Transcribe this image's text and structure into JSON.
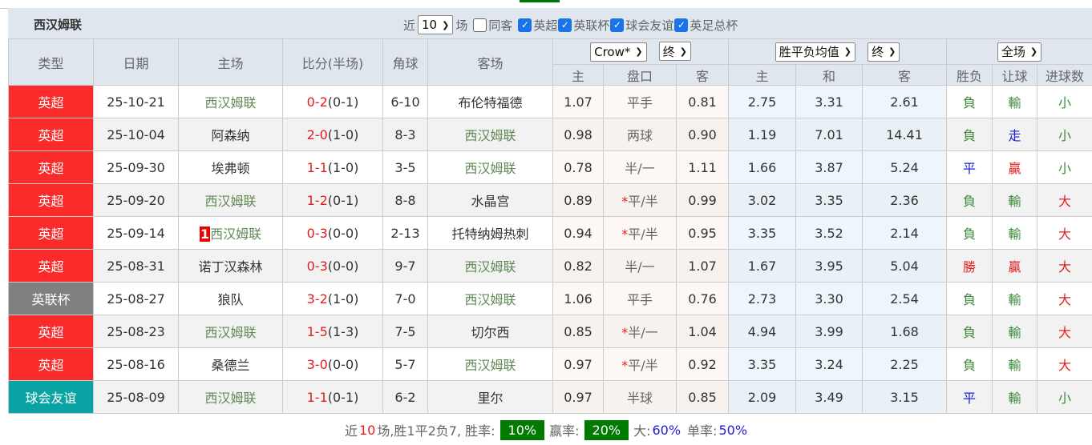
{
  "header": {
    "team": "西汉姆联",
    "near_label": "近",
    "count_value": "10",
    "games_label": "场",
    "checkboxes": [
      {
        "label": "同客",
        "checked": false
      },
      {
        "label": "英超",
        "checked": true
      },
      {
        "label": "英联杯",
        "checked": true
      },
      {
        "label": "球会友谊",
        "checked": true
      },
      {
        "label": "英足总杯",
        "checked": true
      }
    ]
  },
  "columns": {
    "type": "类型",
    "date": "日期",
    "home": "主场",
    "score": "比分(半场)",
    "corner": "角球",
    "away": "客场",
    "company_select": "Crow*",
    "odds_time_select": "终",
    "europe_select": "胜平负均值",
    "europe_time_select": "终",
    "period_select": "全场",
    "sub": [
      "主",
      "盘口",
      "客",
      "主",
      "和",
      "客",
      "胜负",
      "让球",
      "进球数"
    ]
  },
  "colors": {
    "英超": "#fb2b2b",
    "英联杯": "#808080",
    "球会友谊": "#0aa3a3"
  },
  "rows": [
    {
      "type": "英超",
      "date": "25-10-21",
      "home": "西汉姆联",
      "ft": "0-2",
      "ht": "(0-1)",
      "corner": "6-10",
      "away": "布伦特福德",
      "h": "1.07",
      "line": "平手",
      "a": "0.81",
      "w": "2.75",
      "d": "3.31",
      "l": "2.61",
      "res": "負",
      "ah": "輸",
      "ou": "小"
    },
    {
      "type": "英超",
      "date": "25-10-04",
      "home": "阿森纳",
      "ft": "2-0",
      "ht": "(1-0)",
      "corner": "8-3",
      "away": "西汉姆联",
      "h": "0.98",
      "line": "两球",
      "a": "0.90",
      "w": "1.19",
      "d": "7.01",
      "l": "14.41",
      "res": "負",
      "ah": "走",
      "ou": "小"
    },
    {
      "type": "英超",
      "date": "25-09-30",
      "home": "埃弗顿",
      "ft": "1-1",
      "ht": "(1-0)",
      "corner": "3-5",
      "away": "西汉姆联",
      "h": "0.78",
      "line": "半/一",
      "a": "1.11",
      "w": "1.66",
      "d": "3.87",
      "l": "5.24",
      "res": "平",
      "ah": "贏",
      "ou": "小"
    },
    {
      "type": "英超",
      "date": "25-09-20",
      "home": "西汉姆联",
      "ft": "1-2",
      "ht": "(0-1)",
      "corner": "8-8",
      "away": "水晶宫",
      "h": "0.89",
      "star": "*",
      "line": "平/半",
      "a": "0.99",
      "w": "3.02",
      "d": "3.35",
      "l": "2.36",
      "res": "負",
      "ah": "輸",
      "ou": "大"
    },
    {
      "type": "英超",
      "date": "25-09-14",
      "badge": "1",
      "home": "西汉姆联",
      "ft": "0-3",
      "ht": "(0-0)",
      "corner": "2-13",
      "away": "托特纳姆热刺",
      "h": "0.94",
      "star": "*",
      "line": "平/半",
      "a": "0.95",
      "w": "3.35",
      "d": "3.52",
      "l": "2.14",
      "res": "負",
      "ah": "輸",
      "ou": "大"
    },
    {
      "type": "英超",
      "date": "25-08-31",
      "home": "诺丁汉森林",
      "ft": "0-3",
      "ht": "(0-0)",
      "corner": "9-7",
      "away": "西汉姆联",
      "h": "0.82",
      "line": "半/一",
      "a": "1.07",
      "w": "1.67",
      "d": "3.95",
      "l": "5.04",
      "res": "勝",
      "ah": "贏",
      "ou": "大"
    },
    {
      "type": "英联杯",
      "date": "25-08-27",
      "home": "狼队",
      "ft": "3-2",
      "ht": "(1-0)",
      "corner": "7-0",
      "away": "西汉姆联",
      "h": "1.06",
      "line": "平手",
      "a": "0.76",
      "w": "2.73",
      "d": "3.30",
      "l": "2.54",
      "res": "負",
      "ah": "輸",
      "ou": "大"
    },
    {
      "type": "英超",
      "date": "25-08-23",
      "home": "西汉姆联",
      "ft": "1-5",
      "ht": "(1-3)",
      "corner": "7-5",
      "away": "切尔西",
      "h": "0.85",
      "star": "*",
      "line": "半/一",
      "a": "1.04",
      "w": "4.94",
      "d": "3.99",
      "l": "1.68",
      "res": "負",
      "ah": "輸",
      "ou": "大"
    },
    {
      "type": "英超",
      "date": "25-08-16",
      "home": "桑德兰",
      "ft": "3-0",
      "ht": "(0-0)",
      "corner": "5-7",
      "away": "西汉姆联",
      "h": "0.97",
      "star": "*",
      "line": "平/半",
      "a": "0.92",
      "w": "3.35",
      "d": "3.24",
      "l": "2.25",
      "res": "負",
      "ah": "輸",
      "ou": "大"
    },
    {
      "type": "球会友谊",
      "date": "25-08-09",
      "home": "西汉姆联",
      "ft": "1-1",
      "ht": "(0-1)",
      "corner": "6-2",
      "away": "里尔",
      "h": "0.97",
      "line": "半球",
      "a": "0.85",
      "w": "2.09",
      "d": "3.49",
      "l": "3.15",
      "res": "平",
      "ah": "輸",
      "ou": "小"
    }
  ],
  "footer": {
    "p1": "近",
    "n": "10",
    "p2": "场,胜1平2负7, 胜率:",
    "win_rate": "10%",
    "p3": "赢率:",
    "cover_rate": "20%",
    "p4": "大:",
    "over_rate": "60%",
    "p5": "单率:",
    "odd_rate": "50%"
  }
}
